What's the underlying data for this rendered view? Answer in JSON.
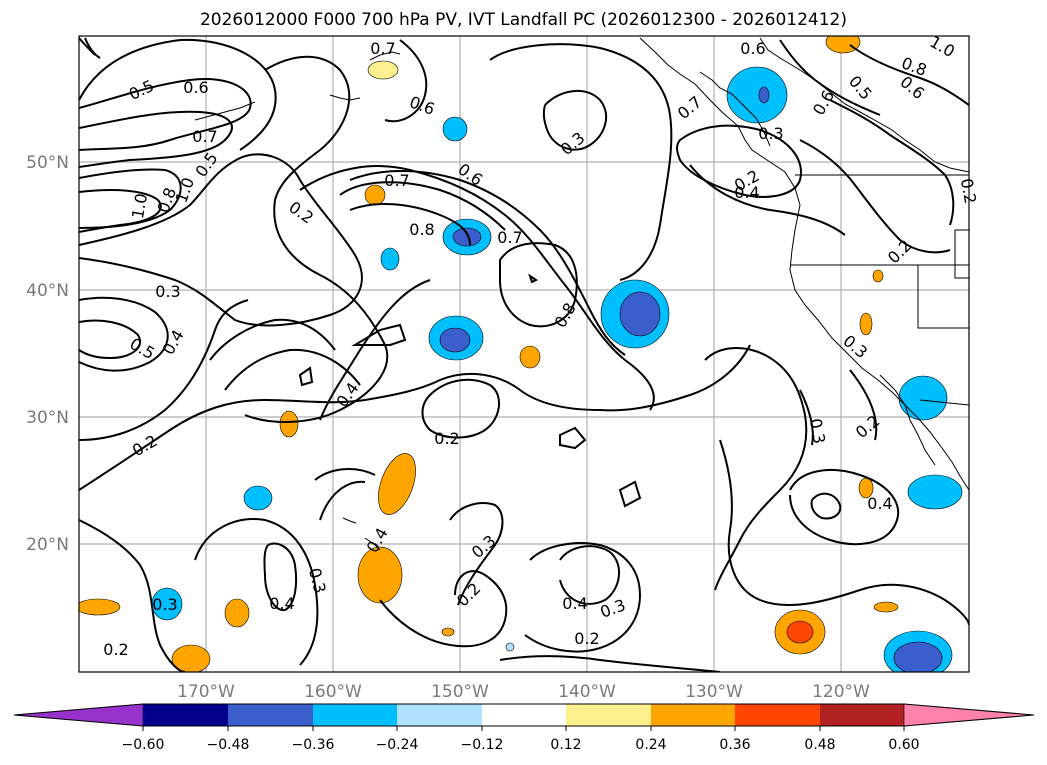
{
  "title": "2026012000 F000 700 hPa PV, IVT Landfall PC (2026012300 - 2026012412)",
  "map": {
    "lat_labels": [
      "50°N",
      "40°N",
      "30°N",
      "20°N"
    ],
    "lon_labels": [
      "170°W",
      "160°W",
      "150°W",
      "140°W",
      "130°W",
      "120°W"
    ],
    "grid": true,
    "contour_labels": [
      {
        "text": "0.5"
      },
      {
        "text": "0.6"
      },
      {
        "text": "0.7"
      },
      {
        "text": "0.5"
      },
      {
        "text": "1.0"
      },
      {
        "text": "0.8"
      },
      {
        "text": "1.0"
      },
      {
        "text": "0.2"
      },
      {
        "text": "0.3"
      },
      {
        "text": "0.5"
      },
      {
        "text": "0.4"
      },
      {
        "text": "0.7"
      },
      {
        "text": "0.6"
      },
      {
        "text": "0.7"
      },
      {
        "text": "0.8"
      },
      {
        "text": "0.6"
      },
      {
        "text": "0.7"
      },
      {
        "text": "0.3"
      },
      {
        "text": "0.8"
      },
      {
        "text": "0.4"
      },
      {
        "text": "0.2"
      },
      {
        "text": "0.2"
      },
      {
        "text": "0.4"
      },
      {
        "text": "0.3"
      },
      {
        "text": "0.2"
      },
      {
        "text": "0.3"
      },
      {
        "text": "0.2"
      },
      {
        "text": "0.4"
      },
      {
        "text": "0.3"
      },
      {
        "text": "0.2"
      },
      {
        "text": "0.4"
      },
      {
        "text": "0.6"
      },
      {
        "text": "0.3"
      },
      {
        "text": "0.2"
      },
      {
        "text": "0.6"
      },
      {
        "text": "0.5"
      },
      {
        "text": "0.8"
      },
      {
        "text": "1.0"
      },
      {
        "text": "0.6"
      },
      {
        "text": "0.3"
      },
      {
        "text": "0.3"
      },
      {
        "text": "0.2"
      },
      {
        "text": "0.4"
      },
      {
        "text": "0.7"
      },
      {
        "text": "0.2"
      },
      {
        "text": "0.2"
      },
      {
        "text": "0.3"
      },
      {
        "text": "0.4"
      }
    ]
  },
  "colorbar": {
    "labels": [
      "−0.60",
      "−0.48",
      "−0.36",
      "−0.24",
      "−0.12",
      "0.12",
      "0.24",
      "0.36",
      "0.48",
      "0.60"
    ],
    "colors": [
      "#9932cc",
      "#00008b",
      "#3a5fcd",
      "#00bfff",
      "#b0e2ff",
      "#ffffff",
      "#fff08f",
      "#ffa500",
      "#ff4500",
      "#b22222",
      "#ff82ab"
    ]
  }
}
